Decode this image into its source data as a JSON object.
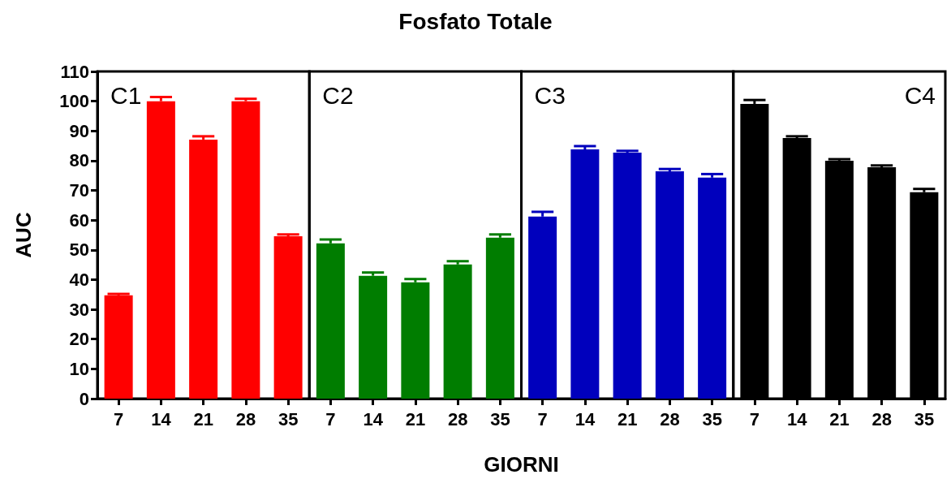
{
  "chart_data": [
    {
      "type": "bar",
      "ylabel": "AUC",
      "categories": [
        "7",
        "14",
        "21",
        "28",
        "35"
      ],
      "color": "#ff0000",
      "values": [
        34.7,
        100,
        87.1,
        100,
        54.6
      ],
      "errors": [
        0.5,
        1.4,
        1.1,
        0.8,
        0.6
      ],
      "ylim": [
        0,
        110
      ],
      "yticks": [
        0,
        10,
        20,
        30,
        40,
        50,
        60,
        70,
        80,
        90,
        100,
        110
      ],
      "annotations": [
        "C1"
      ]
    },
    {
      "type": "bar",
      "title": "Fosfato Totale",
      "xlabel": "GIORNI",
      "categories": [
        "7",
        "14",
        "21",
        "28",
        "35"
      ],
      "color": "#007d00",
      "values": [
        52.2,
        41.3,
        39.1,
        45.1,
        54.1
      ],
      "errors": [
        1.3,
        1.1,
        1.1,
        1.1,
        1.1
      ],
      "ylim": [
        0,
        110
      ],
      "tick_labels": "x",
      "annotations": [
        "C2"
      ]
    },
    {
      "type": "bar",
      "categories": [
        "7",
        "14",
        "21",
        "28",
        "35"
      ],
      "color": "#0000bd",
      "values": [
        61.2,
        83.8,
        82.7,
        76.4,
        74.3
      ],
      "errors": [
        1.6,
        1.1,
        0.6,
        0.8,
        1.2
      ],
      "ylim": [
        0,
        110
      ],
      "tick_labels": "x",
      "annotations": [
        "C3"
      ]
    },
    {
      "type": "bar",
      "categories": [
        "7",
        "14",
        "21",
        "28",
        "35"
      ],
      "color": "#000000",
      "values": [
        99.1,
        87.6,
        80.0,
        77.8,
        69.4
      ],
      "errors": [
        1.3,
        0.6,
        0.5,
        0.6,
        1.1
      ],
      "ylim": [
        0,
        110
      ],
      "tick_labels": "x",
      "annotations": [
        "C4"
      ]
    }
  ]
}
